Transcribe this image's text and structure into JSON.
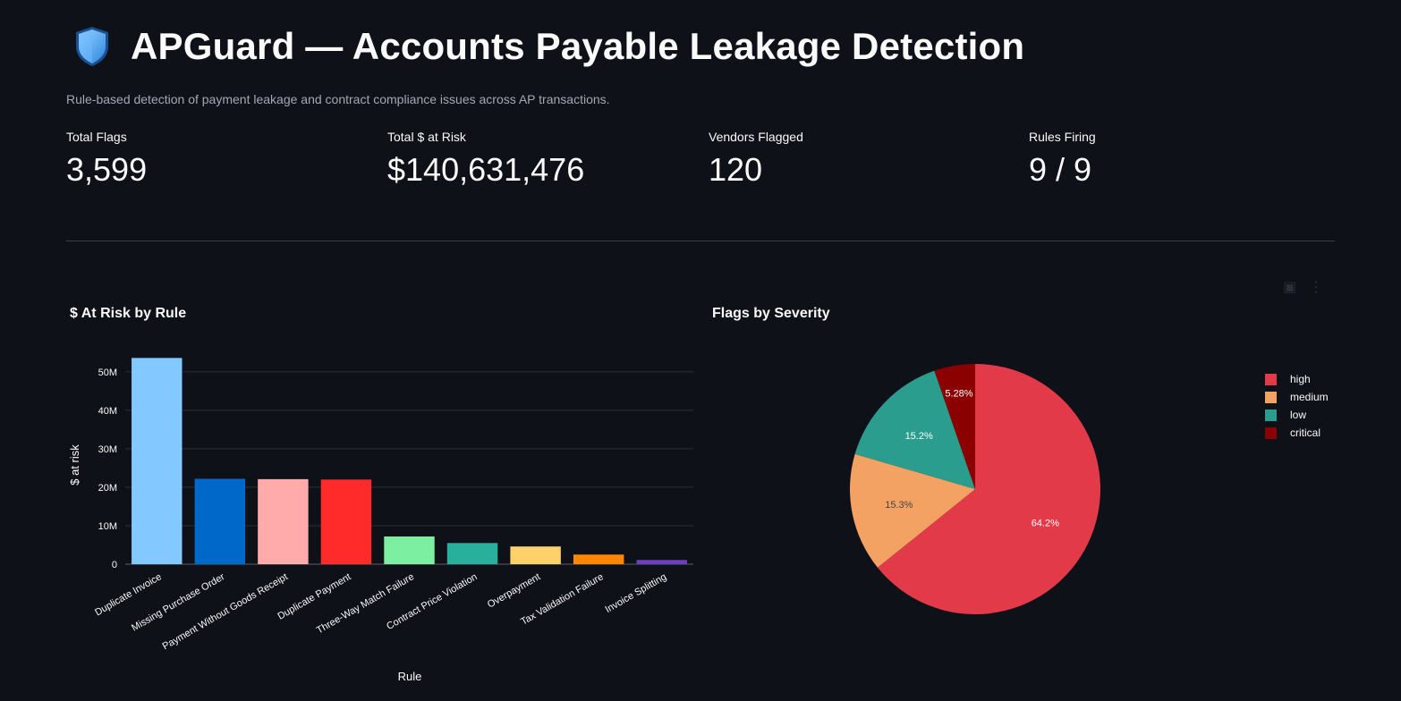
{
  "header": {
    "title": "APGuard — Accounts Payable Leakage Detection",
    "subtitle": "Rule-based detection of payment leakage and contract compliance issues across AP transactions.",
    "icon": "shield-icon"
  },
  "metrics": [
    {
      "label": "Total Flags",
      "value": "3,599"
    },
    {
      "label": "Total $ at Risk",
      "value": "$140,631,476"
    },
    {
      "label": "Vendors Flagged",
      "value": "120"
    },
    {
      "label": "Rules Firing",
      "value": "9 / 9"
    }
  ],
  "toolbar": {
    "icons": [
      "camera-icon",
      "more-icon"
    ]
  },
  "chart_data": [
    {
      "type": "bar",
      "title": "$ At Risk by Rule",
      "xlabel": "Rule",
      "ylabel": "$ at risk",
      "ylim": [
        0,
        56000000
      ],
      "yticks": [
        0,
        10000000,
        20000000,
        30000000,
        40000000,
        50000000
      ],
      "ytick_labels": [
        "0",
        "10M",
        "20M",
        "30M",
        "40M",
        "50M"
      ],
      "grid": true,
      "categories": [
        "Duplicate Invoice",
        "Missing Purchase Order",
        "Payment Without Goods Receipt",
        "Duplicate Payment",
        "Three-Way Match Failure",
        "Contract Price Violation",
        "Overpayment",
        "Tax Validation Failure",
        "Invoice Splitting"
      ],
      "values": [
        53600000,
        22200000,
        22100000,
        22000000,
        7200000,
        5500000,
        4600000,
        2500000,
        1100000
      ],
      "colors": [
        "#83c9ff",
        "#0068c9",
        "#ffabab",
        "#ff2b2b",
        "#7defa1",
        "#29b09d",
        "#ffd16a",
        "#ff8700",
        "#6d3fc0"
      ]
    },
    {
      "type": "pie",
      "title": "Flags by Severity",
      "legend_position": "right",
      "slices": [
        {
          "name": "high",
          "value": 64.2,
          "label": "64.2%",
          "color": "#e33a4a"
        },
        {
          "name": "medium",
          "value": 15.3,
          "label": "15.3%",
          "color": "#f4a263"
        },
        {
          "name": "low",
          "value": 15.2,
          "label": "15.2%",
          "color": "#2a9d8f"
        },
        {
          "name": "critical",
          "value": 5.28,
          "label": "5.28%",
          "color": "#8b0000"
        }
      ]
    }
  ]
}
